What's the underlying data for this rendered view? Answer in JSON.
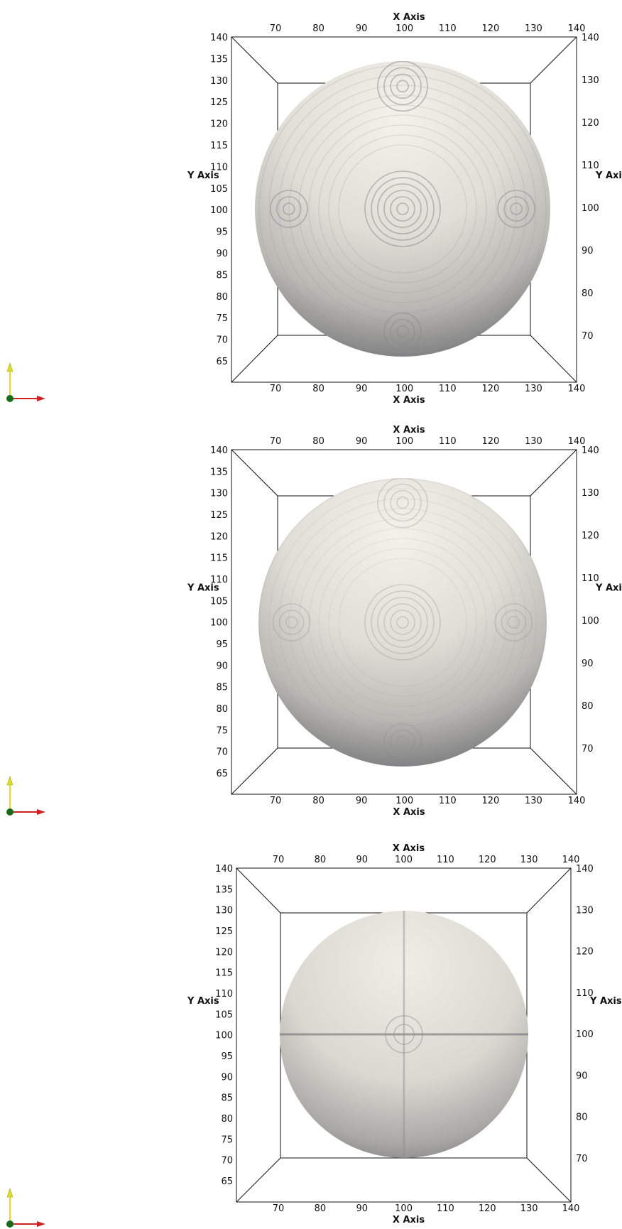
{
  "panels": [
    {
      "name": "panel-voxelized",
      "x_axis_label": "X Axis",
      "y_axis_label": "Y Axis",
      "front_x_ticks": [
        "70",
        "80",
        "90",
        "100",
        "110",
        "120",
        "130",
        "140"
      ],
      "front_y_ticks": [
        "140",
        "135",
        "130",
        "125",
        "120",
        "115",
        "110",
        "105",
        "100",
        "95",
        "90",
        "85",
        "80",
        "75",
        "70",
        "65"
      ],
      "back_y_ticks": [
        "140",
        "130",
        "120",
        "110",
        "100",
        "90",
        "80",
        "70"
      ],
      "surface": "stepped"
    },
    {
      "name": "panel-partially-smoothed",
      "x_axis_label": "X Axis",
      "y_axis_label": "Y Axis",
      "front_x_ticks": [
        "70",
        "80",
        "90",
        "100",
        "110",
        "120",
        "130",
        "140"
      ],
      "front_y_ticks": [
        "140",
        "135",
        "130",
        "125",
        "120",
        "115",
        "110",
        "105",
        "100",
        "95",
        "90",
        "85",
        "80",
        "75",
        "70",
        "65"
      ],
      "back_y_ticks": [
        "140",
        "130",
        "120",
        "110",
        "100",
        "90",
        "80",
        "70"
      ],
      "surface": "partially-smoothed"
    },
    {
      "name": "panel-smoothed",
      "x_axis_label": "X Axis",
      "y_axis_label": "Y Axis",
      "front_x_ticks": [
        "70",
        "80",
        "90",
        "100",
        "110",
        "120",
        "130",
        "140"
      ],
      "front_y_ticks": [
        "140",
        "135",
        "130",
        "125",
        "120",
        "115",
        "110",
        "105",
        "100",
        "95",
        "90",
        "85",
        "80",
        "75",
        "70",
        "65"
      ],
      "back_y_ticks": [
        "140",
        "130",
        "120",
        "110",
        "100",
        "90",
        "80",
        "70"
      ],
      "surface": "smooth"
    }
  ],
  "colors": {
    "sphere_light": "#efede6",
    "sphere_mid": "#c9c7c0",
    "sphere_dark": "#76767a",
    "axis_x": "#cc2222",
    "axis_y": "#dddd22",
    "axis_z": "#1a6b1a",
    "lines": "#111111"
  },
  "icons": {
    "orientation": "axes-triad-icon"
  }
}
